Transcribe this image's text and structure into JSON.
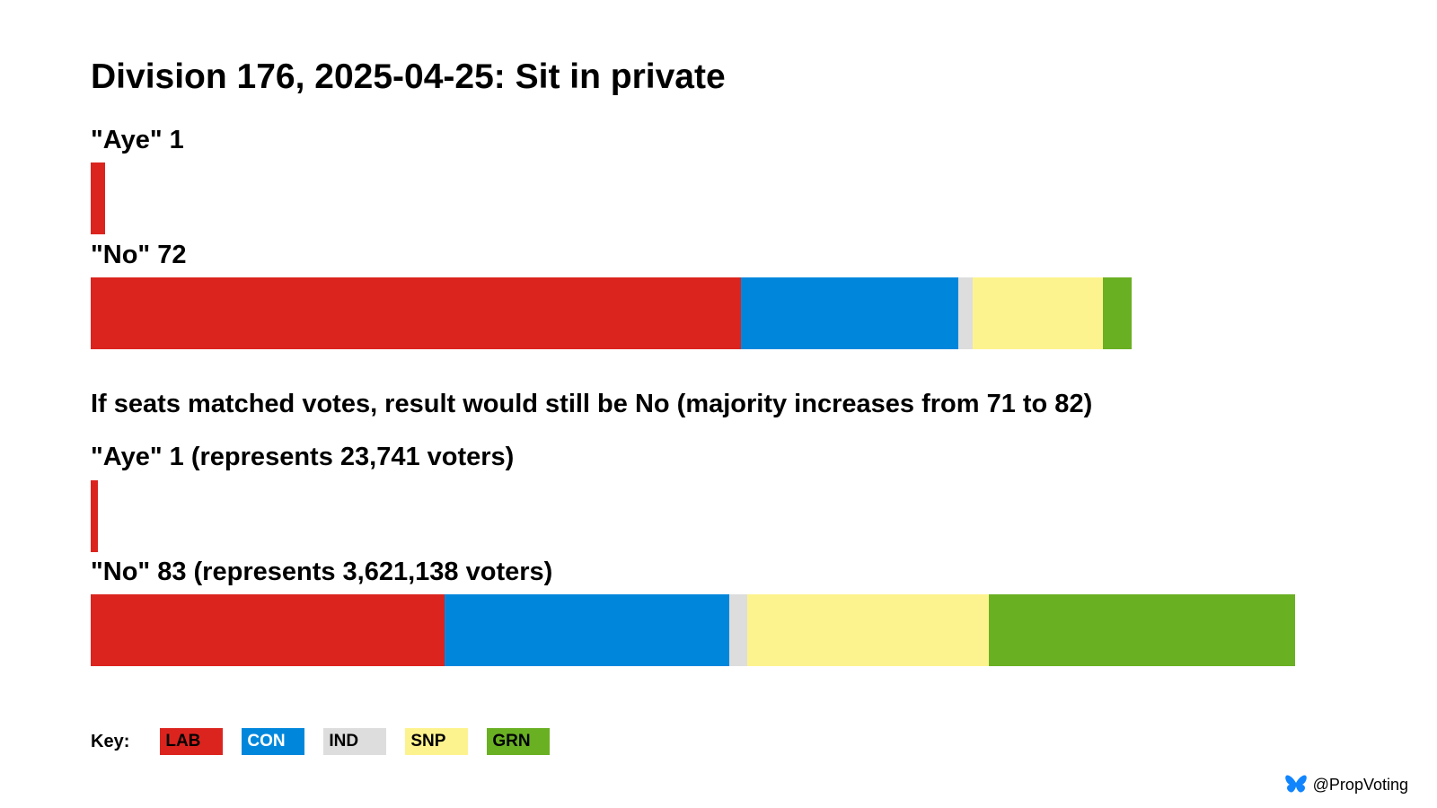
{
  "title": "Division 176, 2025-04-25: Sit in private",
  "note": "If seats matched votes, result would still be No (majority increases from 71 to 82)",
  "key_label": "Key:",
  "credit": "@PropVoting",
  "parties": [
    {
      "code": "LAB",
      "color": "#dc241f",
      "text_color": "#000000"
    },
    {
      "code": "CON",
      "color": "#0087dc",
      "text_color": "#ffffff"
    },
    {
      "code": "IND",
      "color": "#dddddd",
      "text_color": "#000000"
    },
    {
      "code": "SNP",
      "color": "#fdf38e",
      "text_color": "#000000"
    },
    {
      "code": "GRN",
      "color": "#6ab023",
      "text_color": "#000000"
    }
  ],
  "chart_data": [
    {
      "type": "bar",
      "orientation": "horizontal-stacked",
      "panel": "actual",
      "scale_max": 83,
      "rows": [
        {
          "label": "\"Aye\" 1",
          "total": 1,
          "segments": [
            {
              "party": "LAB",
              "value": 1
            }
          ]
        },
        {
          "label": "\"No\" 72",
          "total": 72,
          "segments": [
            {
              "party": "LAB",
              "value": 45
            },
            {
              "party": "CON",
              "value": 15
            },
            {
              "party": "IND",
              "value": 1
            },
            {
              "party": "SNP",
              "value": 9
            },
            {
              "party": "GRN",
              "value": 2
            }
          ]
        }
      ]
    },
    {
      "type": "bar",
      "orientation": "horizontal-stacked",
      "panel": "proportional",
      "scale_max": 83,
      "rows": [
        {
          "label": "\"Aye\" 1 (represents 23,741 voters)",
          "total": 1,
          "segments": [
            {
              "party": "LAB",
              "value": 0.5
            }
          ]
        },
        {
          "label": "\"No\" 83 (represents 3,621,138 voters)",
          "total": 83,
          "segments": [
            {
              "party": "LAB",
              "value": 24.5
            },
            {
              "party": "CON",
              "value": 19.7
            },
            {
              "party": "IND",
              "value": 1.2
            },
            {
              "party": "SNP",
              "value": 16.7
            },
            {
              "party": "GRN",
              "value": 21.2
            }
          ]
        }
      ]
    }
  ]
}
